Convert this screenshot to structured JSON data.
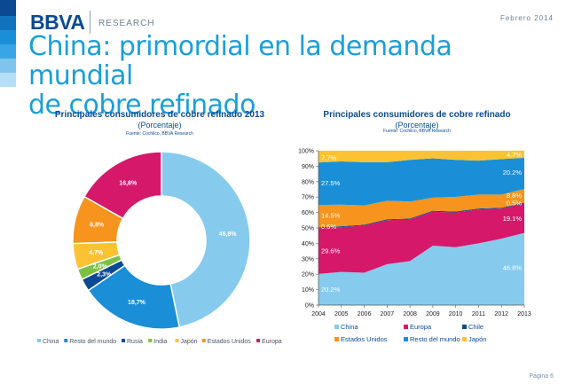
{
  "header": {
    "logo": "BBVA",
    "section": "RESEARCH",
    "date": "Febrero 2014"
  },
  "slide_title_line1": "China: primordial en la demanda mundial",
  "slide_title_line2": "de cobre refinado",
  "colors": {
    "China": "#86cbee",
    "Resto del mundo": "#1a8fd8",
    "Rusia": "#0b4a93",
    "India": "#7cc242",
    "Japón": "#fcc233",
    "Estados Unidos": "#f7941d",
    "Europa": "#d6186b",
    "Chile": "#0b4a93",
    "title_blue": "#1a9fd9"
  },
  "page_label": "Página 6",
  "chart_data": [
    {
      "type": "pie",
      "title": "Principales consumidores de cobre refinado 2013",
      "subtitle": "(Porcentaje)",
      "source": "Fuente: Cochilco, BBVA Research",
      "slices": [
        {
          "label": "China",
          "value": 46.8,
          "value_text": "46,8%"
        },
        {
          "label": "Resto del mundo",
          "value": 18.7,
          "value_text": "18,7%"
        },
        {
          "label": "Rusia",
          "value": 2.3,
          "value_text": "2,3%"
        },
        {
          "label": "India",
          "value": 2.0,
          "value_text": "2,0%"
        },
        {
          "label": "Japón",
          "value": 4.7,
          "value_text": "4,7%"
        },
        {
          "label": "Estados Unidos",
          "value": 8.8,
          "value_text": "8,8%"
        },
        {
          "label": "Europa",
          "value": 16.8,
          "value_text": "16,8%"
        }
      ],
      "legend": [
        "China",
        "Resto del mundo",
        "Rusia",
        "India",
        "Japón",
        "Estados Unidos",
        "Europa"
      ]
    },
    {
      "type": "area",
      "stacked": true,
      "title": "Principales consumidores de cobre refinado",
      "subtitle": "(Porcentaje)",
      "source": "Fuente: Cochilco, BBVA Research",
      "x": [
        2004,
        2005,
        2006,
        2007,
        2008,
        2009,
        2010,
        2011,
        2012,
        2013
      ],
      "ylim": [
        0,
        100
      ],
      "y_ticks": [
        "0%",
        "10%",
        "20%",
        "30%",
        "40%",
        "50%",
        "60%",
        "70%",
        "80%",
        "90%",
        "100%"
      ],
      "series": [
        {
          "name": "China",
          "values": [
            20.2,
            21.5,
            21,
            26.5,
            28.5,
            38.5,
            37.5,
            40,
            43,
            46.8
          ]
        },
        {
          "name": "Europa",
          "values": [
            29.6,
            29,
            30.5,
            28.5,
            27,
            22,
            22.5,
            22,
            19.5,
            19.1
          ]
        },
        {
          "name": "Chile",
          "values": [
            0.6,
            0.6,
            0.6,
            0.6,
            0.6,
            0.6,
            0.6,
            0.6,
            0.6,
            0.5
          ]
        },
        {
          "name": "Estados Unidos",
          "values": [
            14.5,
            14,
            12.5,
            12,
            11,
            8.5,
            9.5,
            9,
            8.5,
            8.8
          ]
        },
        {
          "name": "Resto del mundo",
          "values": [
            27.5,
            28,
            28,
            25,
            27,
            25.5,
            24,
            22,
            23,
            20.2
          ]
        },
        {
          "name": "Japón",
          "values": [
            7.7,
            7,
            7.5,
            7.5,
            6,
            5,
            6,
            6.5,
            5.5,
            4.7
          ]
        }
      ],
      "annotations": [
        {
          "text": "7.7%",
          "x": 2004,
          "y": 95.5,
          "anchor": "start"
        },
        {
          "text": "27.5%",
          "x": 2004,
          "y": 79,
          "anchor": "start"
        },
        {
          "text": "14.5%",
          "x": 2004,
          "y": 58,
          "anchor": "start"
        },
        {
          "text": "0.6%",
          "x": 2004,
          "y": 51,
          "anchor": "start"
        },
        {
          "text": "29.6%",
          "x": 2004,
          "y": 35,
          "anchor": "start"
        },
        {
          "text": "20.2%",
          "x": 2004,
          "y": 10,
          "anchor": "start"
        },
        {
          "text": "4.7%",
          "x": 2013,
          "y": 97.5,
          "anchor": "end"
        },
        {
          "text": "20.2%",
          "x": 2013,
          "y": 86,
          "anchor": "end"
        },
        {
          "text": "8.8%",
          "x": 2013,
          "y": 71,
          "anchor": "end"
        },
        {
          "text": "0.5%",
          "x": 2013,
          "y": 66,
          "anchor": "end"
        },
        {
          "text": "19.1%",
          "x": 2013,
          "y": 56,
          "anchor": "end"
        },
        {
          "text": "46.8%",
          "x": 2013,
          "y": 24,
          "anchor": "end"
        }
      ],
      "legend": [
        "China",
        "Europa",
        "Chile",
        "Estados Unidos",
        "Resto del mundo",
        "Japón"
      ]
    }
  ]
}
